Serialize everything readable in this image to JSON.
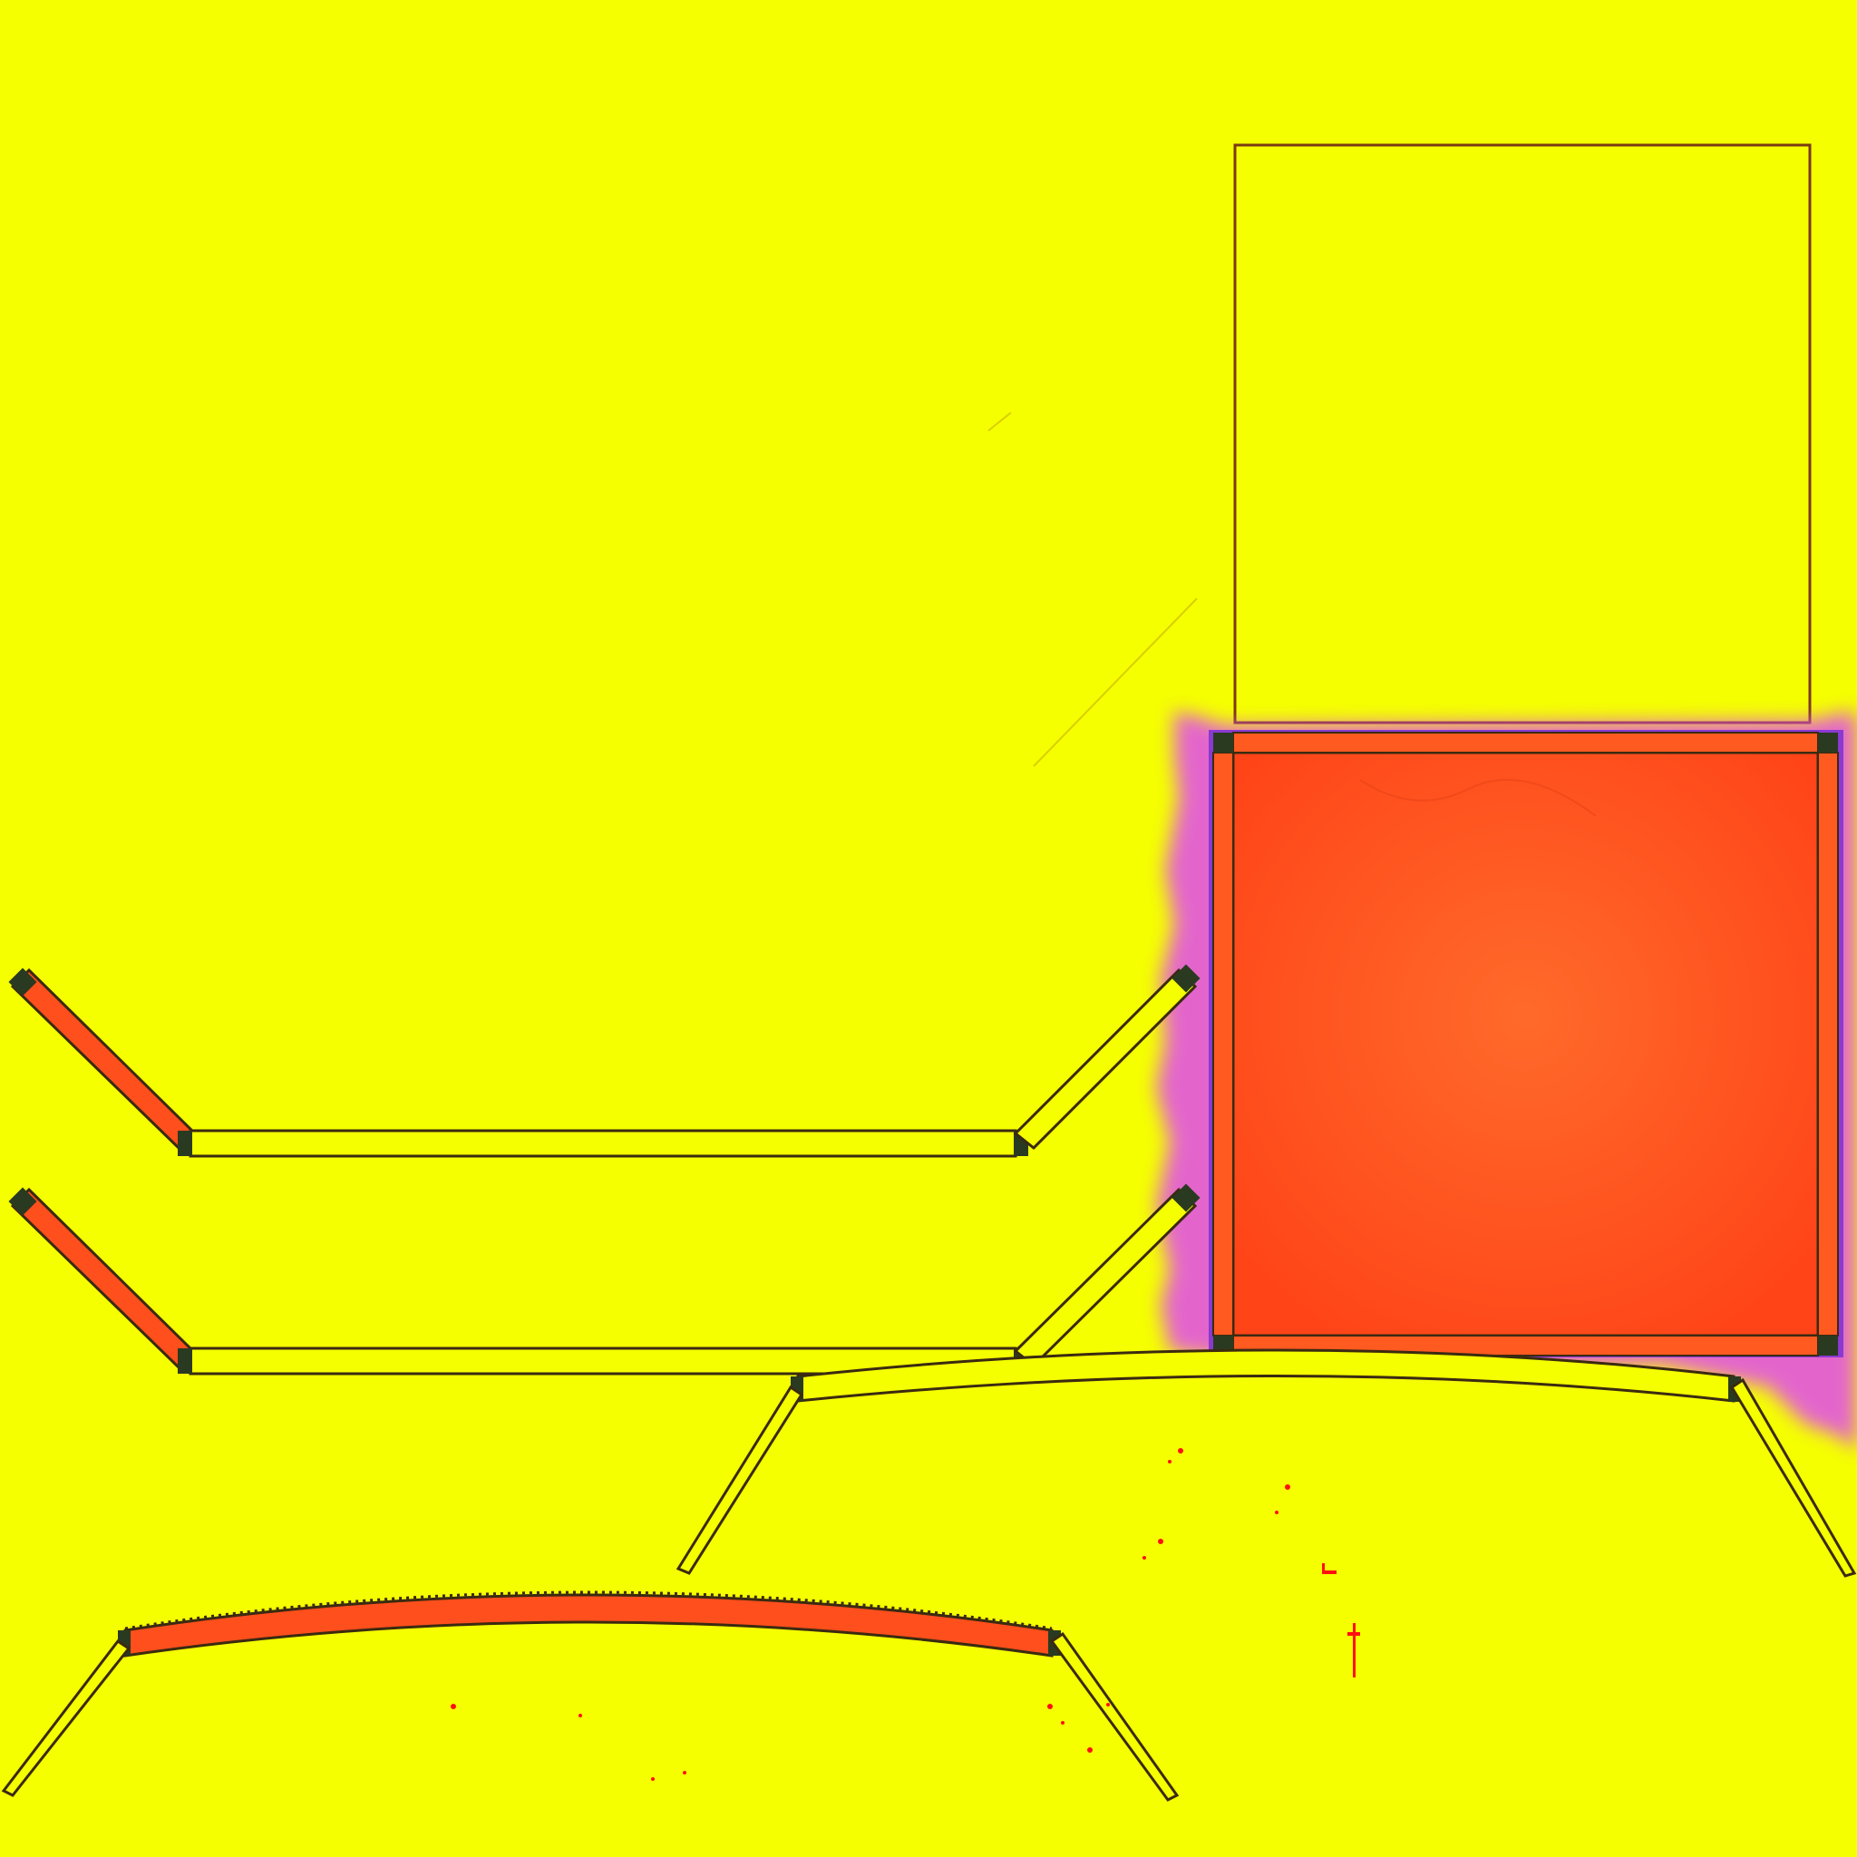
{
  "colors": {
    "background": "#f5ff00",
    "panel_fill": "#ff4f1c",
    "panel_fill_light": "#ff6a2a",
    "outline": "#3b2a10",
    "magenta_glow": "#e04cf0",
    "purple_edge": "#9a52d8",
    "speck": "#ff1010"
  },
  "icons": [
    "texture-atlas",
    "uv-shell"
  ]
}
